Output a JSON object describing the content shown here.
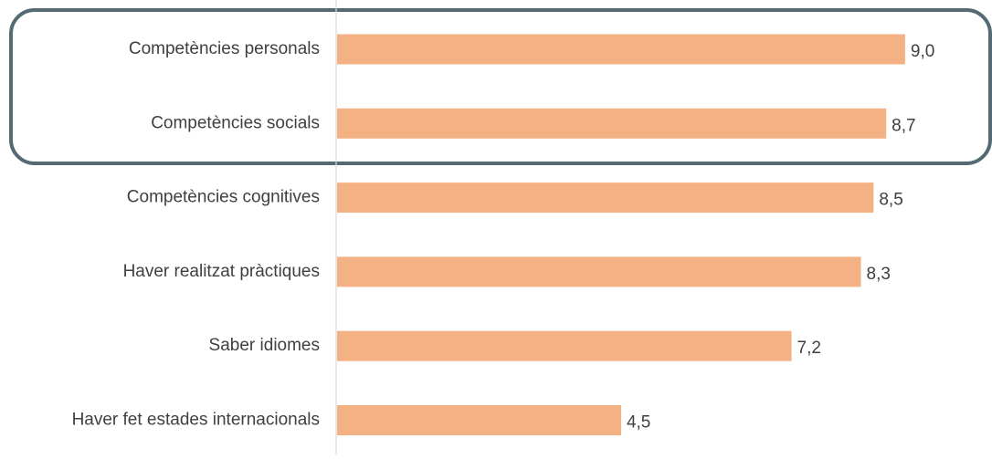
{
  "chart_data": {
    "type": "bar",
    "orientation": "horizontal",
    "categories": [
      "Competències personals",
      "Competències socials",
      "Competències cognitives",
      "Haver realitzat pràctiques",
      "Saber idiomes",
      "Haver fet estades internacionals"
    ],
    "values": [
      9.0,
      8.7,
      8.5,
      8.3,
      7.2,
      4.5
    ],
    "value_labels": [
      "9,0",
      "8,7",
      "8,5",
      "8,3",
      "7,2",
      "4,5"
    ],
    "xlim": [
      0,
      10
    ],
    "grid": false,
    "legend": "none",
    "highlighted_categories": [
      "Competències personals",
      "Competències socials"
    ]
  },
  "colors": {
    "bar": "#f4b183",
    "axis": "#d9d9d9",
    "highlight_border": "#546b75",
    "text": "#404040"
  }
}
